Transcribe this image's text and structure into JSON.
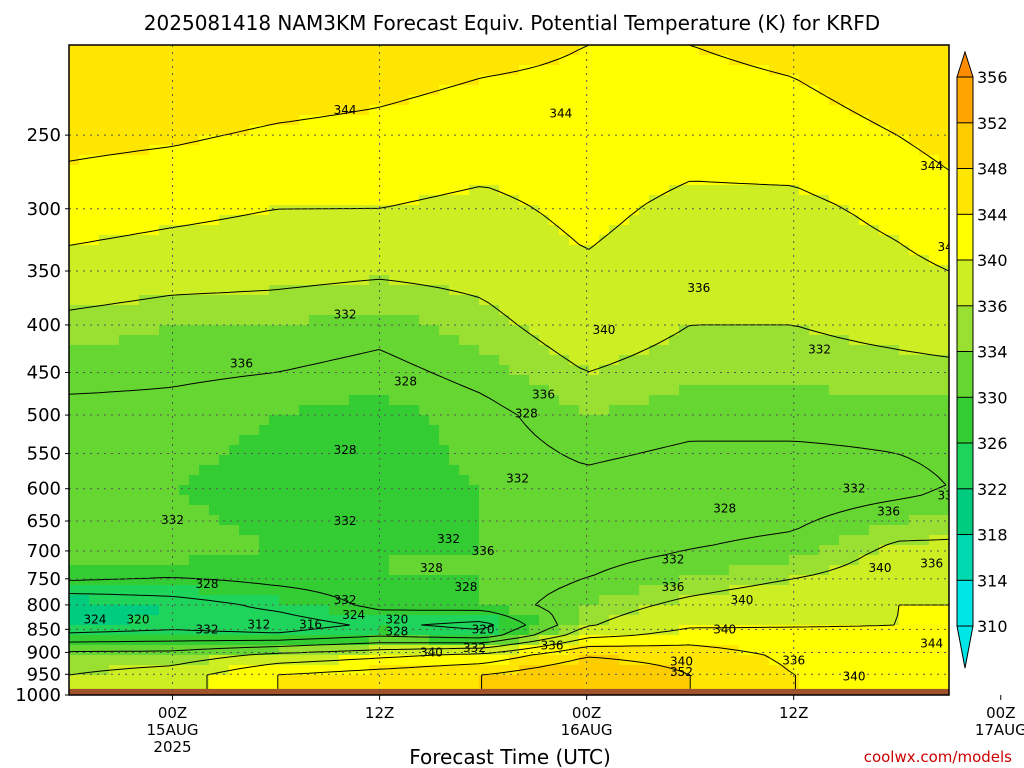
{
  "chart_data": {
    "type": "heatmap",
    "subtype": "time-pressure cross-section with contours",
    "title": "2025081418 NAM3KM Forecast Equiv. Potential Temperature (K) for KRFD",
    "xlabel": "Forecast Time (UTC)",
    "ylabel": "",
    "credit": "coolwx.com/models",
    "y_axis": {
      "scale": "log",
      "reversed": true,
      "ylim": [
        1000,
        200
      ],
      "ticks": [
        250,
        300,
        350,
        400,
        450,
        500,
        550,
        600,
        650,
        700,
        750,
        800,
        850,
        900,
        950,
        1000
      ]
    },
    "x_axis": {
      "range_hours": [
        -6,
        45
      ],
      "ticks": [
        {
          "hour": 0,
          "lines": [
            "00Z",
            "15AUG",
            "2025"
          ]
        },
        {
          "hour": 12,
          "lines": [
            "12Z"
          ]
        },
        {
          "hour": 24,
          "lines": [
            "00Z",
            "16AUG"
          ]
        },
        {
          "hour": 36,
          "lines": [
            "12Z"
          ]
        },
        {
          "hour": 48,
          "lines": [
            "00Z",
            "17AUG"
          ]
        }
      ]
    },
    "grid": true,
    "colorbar": {
      "levels": [
        310,
        314,
        318,
        322,
        326,
        330,
        334,
        336,
        340,
        344,
        348,
        352,
        356
      ],
      "colors": [
        "#00e6e6",
        "#00d9b0",
        "#00cc80",
        "#1fd45a",
        "#33cc33",
        "#66d633",
        "#99e033",
        "#ccee22",
        "#ffff00",
        "#ffe600",
        "#ffcc00",
        "#ffa500",
        "#ff8c00"
      ],
      "extend": "both",
      "placement": "right"
    },
    "ground_color": "#a0522d",
    "field": {
      "pressure_levels": [
        200,
        300,
        400,
        500,
        600,
        700,
        750,
        800,
        850,
        900,
        950
      ],
      "times_hours": [
        -6,
        0,
        6,
        12,
        18,
        24,
        30,
        36,
        42,
        48,
        51
      ],
      "values": [
        [
          348,
          348,
          347,
          346,
          345,
          344,
          344,
          345,
          347,
          349,
          351
        ],
        [
          342,
          341,
          340,
          340,
          339,
          341,
          339,
          339,
          341,
          344,
          346
        ],
        [
          335,
          334,
          334,
          333,
          335,
          338,
          336,
          336,
          337,
          338,
          339
        ],
        [
          331,
          331,
          330,
          329,
          331,
          334,
          333,
          333,
          333,
          333,
          334
        ],
        [
          331,
          330,
          329,
          329,
          330,
          331,
          330,
          330,
          331,
          333,
          334
        ],
        [
          331,
          331,
          330,
          330,
          330,
          331,
          332,
          333,
          337,
          337,
          336
        ],
        [
          329,
          328,
          329,
          330,
          330,
          332,
          334,
          336,
          338,
          338,
          340
        ],
        [
          320,
          322,
          325,
          329,
          330,
          334,
          337,
          339,
          340,
          340,
          341
        ],
        [
          322,
          323,
          321,
          324,
          321,
          336,
          340,
          340,
          340,
          341,
          342
        ],
        [
          333,
          333,
          336,
          338,
          340,
          347,
          346,
          343,
          342,
          344,
          346
        ],
        [
          336,
          338,
          344,
          346,
          348,
          352,
          348,
          344,
          342,
          344,
          348
        ]
      ]
    },
    "contour_labels": [
      {
        "text": "344",
        "hour": 10,
        "p": 235
      },
      {
        "text": "344",
        "hour": 22.5,
        "p": 237
      },
      {
        "text": "344",
        "hour": 44,
        "p": 270
      },
      {
        "text": "340",
        "hour": 45,
        "p": 330
      },
      {
        "text": "336",
        "hour": 30.5,
        "p": 365
      },
      {
        "text": "340",
        "hour": 25,
        "p": 405
      },
      {
        "text": "336",
        "hour": 49,
        "p": 395
      },
      {
        "text": "332",
        "hour": 10,
        "p": 390
      },
      {
        "text": "336",
        "hour": 4,
        "p": 440
      },
      {
        "text": "328",
        "hour": 13.5,
        "p": 460
      },
      {
        "text": "332",
        "hour": 37.5,
        "p": 425
      },
      {
        "text": "332",
        "hour": 49,
        "p": 440
      },
      {
        "text": "336",
        "hour": 21.5,
        "p": 475
      },
      {
        "text": "328",
        "hour": 20.5,
        "p": 498
      },
      {
        "text": "328",
        "hour": 10,
        "p": 545
      },
      {
        "text": "332",
        "hour": 20,
        "p": 585
      },
      {
        "text": "332",
        "hour": 39.5,
        "p": 600
      },
      {
        "text": "332",
        "hour": 45,
        "p": 610
      },
      {
        "text": "332",
        "hour": 0,
        "p": 648
      },
      {
        "text": "332",
        "hour": 10,
        "p": 650
      },
      {
        "text": "328",
        "hour": 32,
        "p": 630
      },
      {
        "text": "336",
        "hour": 41.5,
        "p": 635
      },
      {
        "text": "332",
        "hour": 16,
        "p": 680
      },
      {
        "text": "336",
        "hour": 18,
        "p": 700
      },
      {
        "text": "332",
        "hour": 29,
        "p": 715
      },
      {
        "text": "328",
        "hour": 15,
        "p": 730
      },
      {
        "text": "340",
        "hour": 41,
        "p": 730
      },
      {
        "text": "336",
        "hour": 44,
        "p": 722
      },
      {
        "text": "328",
        "hour": 2,
        "p": 760
      },
      {
        "text": "328",
        "hour": 17,
        "p": 765
      },
      {
        "text": "336",
        "hour": 29,
        "p": 765
      },
      {
        "text": "332",
        "hour": 47,
        "p": 760
      },
      {
        "text": "332",
        "hour": 10,
        "p": 790
      },
      {
        "text": "340",
        "hour": 33,
        "p": 790
      },
      {
        "text": "340",
        "hour": 46.5,
        "p": 780
      },
      {
        "text": "336",
        "hour": 48,
        "p": 792
      },
      {
        "text": "340",
        "hour": 52,
        "p": 785
      },
      {
        "text": "324",
        "hour": -4.5,
        "p": 830
      },
      {
        "text": "320",
        "hour": -2,
        "p": 830
      },
      {
        "text": "324",
        "hour": 10.5,
        "p": 820
      },
      {
        "text": "320",
        "hour": 13,
        "p": 830
      },
      {
        "text": "312",
        "hour": 5,
        "p": 840
      },
      {
        "text": "316",
        "hour": 8,
        "p": 840
      },
      {
        "text": "332",
        "hour": 2,
        "p": 850
      },
      {
        "text": "328",
        "hour": 13,
        "p": 855
      },
      {
        "text": "320",
        "hour": 18,
        "p": 850
      },
      {
        "text": "340",
        "hour": 32,
        "p": 850
      },
      {
        "text": "340",
        "hour": 49.5,
        "p": 845
      },
      {
        "text": "344",
        "hour": 44,
        "p": 880
      },
      {
        "text": "340",
        "hour": 15,
        "p": 900
      },
      {
        "text": "332",
        "hour": 17.5,
        "p": 890
      },
      {
        "text": "336",
        "hour": 22,
        "p": 885
      },
      {
        "text": "340",
        "hour": 29.5,
        "p": 920
      },
      {
        "text": "336",
        "hour": 36,
        "p": 918
      },
      {
        "text": "344",
        "hour": 48,
        "p": 915
      },
      {
        "text": "352",
        "hour": 29.5,
        "p": 945
      },
      {
        "text": "340",
        "hour": 39.5,
        "p": 955
      }
    ]
  }
}
